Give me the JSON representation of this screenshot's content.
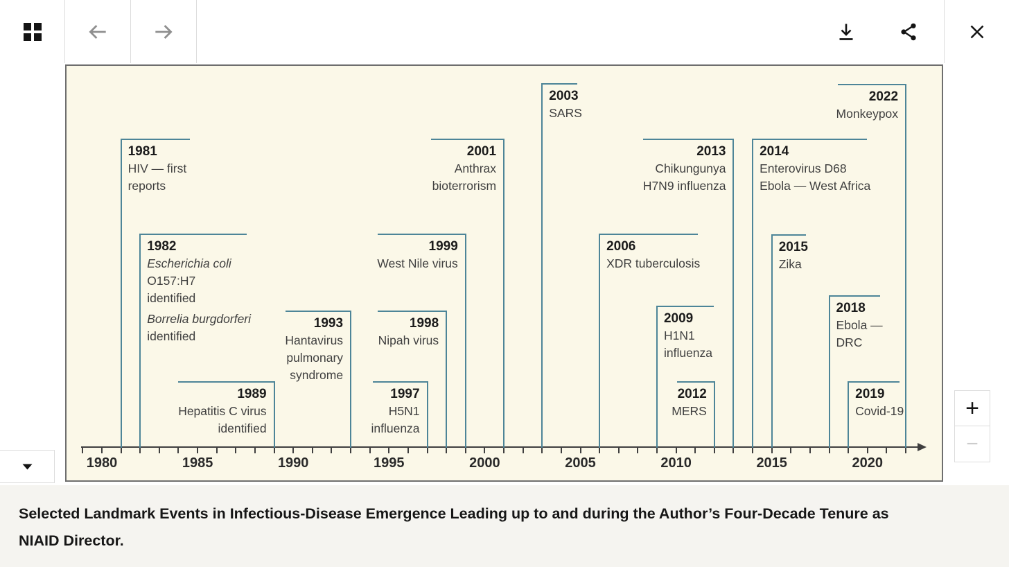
{
  "toolbar": {
    "icons": {
      "gallery": "grid-icon",
      "back": "arrow-left-icon",
      "forward": "arrow-right-icon",
      "download": "download-icon",
      "share": "share-icon",
      "close": "close-icon"
    }
  },
  "expander": {
    "icon": "caret-down-icon"
  },
  "zoom_controls": {
    "zoom_in": "+",
    "zoom_out": "−"
  },
  "caption": {
    "text": "Selected Landmark Events in Infectious-Disease Emergence Leading up to and during the Author’s Four-Decade Tenure as NIAID Director.",
    "lines": [
      "Selected Landmark Events in Infectious-Disease Emergence Leading up to and during the Author’s Four-Decade Tenure as",
      "NIAID Director."
    ]
  },
  "colors": {
    "figure_background": "#fbf8e8",
    "event_line": "#4d8598",
    "axis": "#3f3f3f",
    "event_text": "#3f3f3f",
    "year_text": "#1b1b1b",
    "caption_background": "#f5f4f0",
    "caption_text": "#161616"
  },
  "chart_data": {
    "type": "timeline",
    "title": "",
    "x_axis": {
      "min": 1979,
      "max": 2022,
      "minor_tick_interval": 1,
      "labeled_ticks": [
        1980,
        1985,
        1990,
        1995,
        2000,
        2005,
        2010,
        2015,
        2020
      ],
      "arrow": "right"
    },
    "events": [
      {
        "year": 1981,
        "side": "right",
        "tier": 105,
        "cap": 100,
        "lines": [
          {
            "t": "HIV — first"
          },
          {
            "t": "reports"
          }
        ]
      },
      {
        "year": 1982,
        "side": "right",
        "tier": 242,
        "cap": 155,
        "lines": [
          {
            "t": "Escherichia coli",
            "i": true
          },
          {
            "t": "O157:H7"
          },
          {
            "t": "identified"
          },
          {
            "t": "Borrelia burgdorferi",
            "i": true,
            "gap": true
          },
          {
            "t": "identified"
          }
        ]
      },
      {
        "year": 1989,
        "side": "left",
        "tier": 455,
        "cap": 140,
        "lines": [
          {
            "t": "Hepatitis C virus"
          },
          {
            "t": "identified"
          }
        ]
      },
      {
        "year": 1993,
        "side": "left",
        "tier": 353,
        "cap": 95,
        "lines": [
          {
            "t": "Hantavirus"
          },
          {
            "t": "pulmonary"
          },
          {
            "t": "syndrome"
          }
        ]
      },
      {
        "year": 1997,
        "side": "left",
        "tier": 455,
        "cap": 80,
        "lines": [
          {
            "t": "H5N1"
          },
          {
            "t": "influenza"
          }
        ]
      },
      {
        "year": 1998,
        "side": "left",
        "tier": 353,
        "cap": 100,
        "lines": [
          {
            "t": "Nipah virus"
          }
        ]
      },
      {
        "year": 1999,
        "side": "left",
        "tier": 242,
        "cap": 128,
        "lines": [
          {
            "t": "West Nile virus"
          }
        ]
      },
      {
        "year": 2001,
        "side": "left",
        "tier": 105,
        "cap": 106,
        "lines": [
          {
            "t": "Anthrax"
          },
          {
            "t": "bioterrorism"
          }
        ]
      },
      {
        "year": 2003,
        "side": "right",
        "tier": 25,
        "cap": 52,
        "lines": [
          {
            "t": "SARS"
          }
        ]
      },
      {
        "year": 2006,
        "side": "right",
        "tier": 242,
        "cap": 143,
        "lines": [
          {
            "t": "XDR tuberculosis"
          }
        ]
      },
      {
        "year": 2009,
        "side": "right",
        "tier": 346,
        "cap": 83,
        "lines": [
          {
            "t": "H1N1"
          },
          {
            "t": "influenza"
          }
        ]
      },
      {
        "year": 2012,
        "side": "left",
        "tier": 455,
        "cap": 55,
        "lines": [
          {
            "t": "MERS"
          }
        ]
      },
      {
        "year": 2013,
        "side": "left",
        "tier": 105,
        "cap": 131,
        "lines": [
          {
            "t": "Chikungunya"
          },
          {
            "t": "H7N9 influenza"
          }
        ]
      },
      {
        "year": 2014,
        "side": "right",
        "tier": 105,
        "cap": 166,
        "lines": [
          {
            "t": "Enterovirus D68"
          },
          {
            "t": "Ebola — West Africa"
          }
        ]
      },
      {
        "year": 2015,
        "side": "right",
        "tier": 243,
        "cap": 50,
        "lines": [
          {
            "t": "Zika"
          }
        ]
      },
      {
        "year": 2018,
        "side": "right",
        "tier": 331,
        "cap": 74,
        "lines": [
          {
            "t": "Ebola —"
          },
          {
            "t": "DRC"
          }
        ]
      },
      {
        "year": 2019,
        "side": "right",
        "tier": 455,
        "cap": 75,
        "lines": [
          {
            "t": "Covid-19"
          }
        ]
      },
      {
        "year": 2022,
        "side": "left",
        "tier": 26,
        "cap": 99,
        "lines": [
          {
            "t": "Monkeypox"
          }
        ]
      }
    ]
  }
}
